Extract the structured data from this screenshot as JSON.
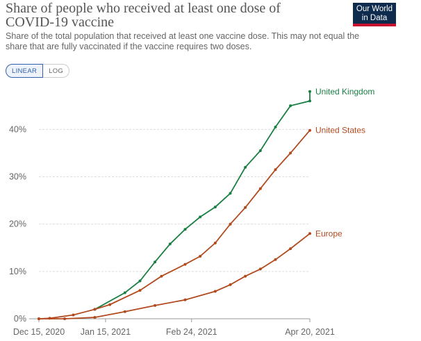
{
  "header": {
    "title": "Share of people who received at least one dose of COVID-19 vaccine",
    "subtitle": "Share of the total population that received at least one vaccine dose. This may not equal the share that are fully vaccinated if the vaccine requires two doses.",
    "logo_line1": "Our World",
    "logo_line2": "in Data",
    "logo_colors": {
      "background": "#0e2a4d",
      "accent": "#c8102e"
    }
  },
  "scale_toggle": {
    "options": [
      "LINEAR",
      "LOG"
    ],
    "selected": "LINEAR"
  },
  "chart_data": {
    "type": "line",
    "title": "Share of people who received at least one dose of COVID-19 vaccine",
    "xlabel": "",
    "ylabel": "",
    "x_ticks": [
      "Dec 15, 2020",
      "Jan 15, 2021",
      "Feb 24, 2021",
      "Apr 20, 2021"
    ],
    "y_ticks": [
      "0%",
      "10%",
      "20%",
      "30%",
      "40%"
    ],
    "ylim": [
      0,
      49
    ],
    "grid": "horizontal dashed",
    "legend": "inline labels at line ends",
    "series": [
      {
        "name": "United Kingdom",
        "color": "#1a7f43",
        "points": [
          [
            "2021-01-10",
            2.0
          ],
          [
            "2021-01-24",
            5.5
          ],
          [
            "2021-01-31",
            8.0
          ],
          [
            "2021-02-07",
            12.0
          ],
          [
            "2021-02-14",
            15.8
          ],
          [
            "2021-02-21",
            18.9
          ],
          [
            "2021-02-28",
            21.5
          ],
          [
            "2021-03-07",
            23.6
          ],
          [
            "2021-03-14",
            26.5
          ],
          [
            "2021-03-21",
            32.0
          ],
          [
            "2021-03-28",
            35.5
          ],
          [
            "2021-04-04",
            40.5
          ],
          [
            "2021-04-11",
            45.0
          ],
          [
            "2021-04-20",
            46.0
          ],
          [
            "2021-04-20",
            48.0
          ]
        ]
      },
      {
        "name": "United States",
        "color": "#b24a1e",
        "points": [
          [
            "2020-12-15",
            0.0
          ],
          [
            "2020-12-20",
            0.1
          ],
          [
            "2020-12-31",
            0.8
          ],
          [
            "2021-01-10",
            2.0
          ],
          [
            "2021-01-17",
            3.0
          ],
          [
            "2021-01-31",
            6.0
          ],
          [
            "2021-02-10",
            9.0
          ],
          [
            "2021-02-21",
            11.5
          ],
          [
            "2021-02-28",
            13.2
          ],
          [
            "2021-03-07",
            16.0
          ],
          [
            "2021-03-14",
            20.0
          ],
          [
            "2021-03-21",
            23.5
          ],
          [
            "2021-03-28",
            27.5
          ],
          [
            "2021-04-04",
            31.5
          ],
          [
            "2021-04-11",
            35.0
          ],
          [
            "2021-04-20",
            39.8
          ]
        ]
      },
      {
        "name": "Europe",
        "color": "#b24a1e",
        "points": [
          [
            "2020-12-15",
            0.0
          ],
          [
            "2020-12-27",
            0.0
          ],
          [
            "2021-01-10",
            0.3
          ],
          [
            "2021-01-24",
            1.5
          ],
          [
            "2021-02-07",
            2.8
          ],
          [
            "2021-02-21",
            4.0
          ],
          [
            "2021-03-07",
            5.8
          ],
          [
            "2021-03-14",
            7.2
          ],
          [
            "2021-03-21",
            9.0
          ],
          [
            "2021-03-28",
            10.5
          ],
          [
            "2021-04-04",
            12.5
          ],
          [
            "2021-04-11",
            14.8
          ],
          [
            "2021-04-20",
            18.0
          ]
        ]
      }
    ]
  }
}
